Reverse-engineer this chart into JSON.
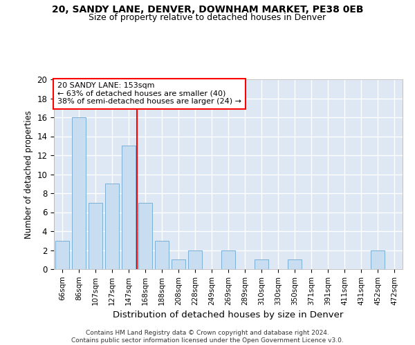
{
  "title_line1": "20, SANDY LANE, DENVER, DOWNHAM MARKET, PE38 0EB",
  "title_line2": "Size of property relative to detached houses in Denver",
  "xlabel": "Distribution of detached houses by size in Denver",
  "ylabel": "Number of detached properties",
  "categories": [
    "66sqm",
    "86sqm",
    "107sqm",
    "127sqm",
    "147sqm",
    "168sqm",
    "188sqm",
    "208sqm",
    "228sqm",
    "249sqm",
    "269sqm",
    "289sqm",
    "310sqm",
    "330sqm",
    "350sqm",
    "371sqm",
    "391sqm",
    "411sqm",
    "431sqm",
    "452sqm",
    "472sqm"
  ],
  "values": [
    3,
    16,
    7,
    9,
    13,
    7,
    3,
    1,
    2,
    0,
    2,
    0,
    1,
    0,
    1,
    0,
    0,
    0,
    0,
    2,
    0
  ],
  "bar_color": "#c8ddf0",
  "bar_edge_color": "#7aafd4",
  "vline_x": 4.5,
  "vline_color": "red",
  "annotation_text": "20 SANDY LANE: 153sqm\n← 63% of detached houses are smaller (40)\n38% of semi-detached houses are larger (24) →",
  "annotation_box_color": "white",
  "annotation_box_edge": "red",
  "ylim": [
    0,
    20
  ],
  "yticks": [
    0,
    2,
    4,
    6,
    8,
    10,
    12,
    14,
    16,
    18,
    20
  ],
  "bg_color": "#dde8f4",
  "grid_color": "white",
  "footer": "Contains HM Land Registry data © Crown copyright and database right 2024.\nContains public sector information licensed under the Open Government Licence v3.0."
}
